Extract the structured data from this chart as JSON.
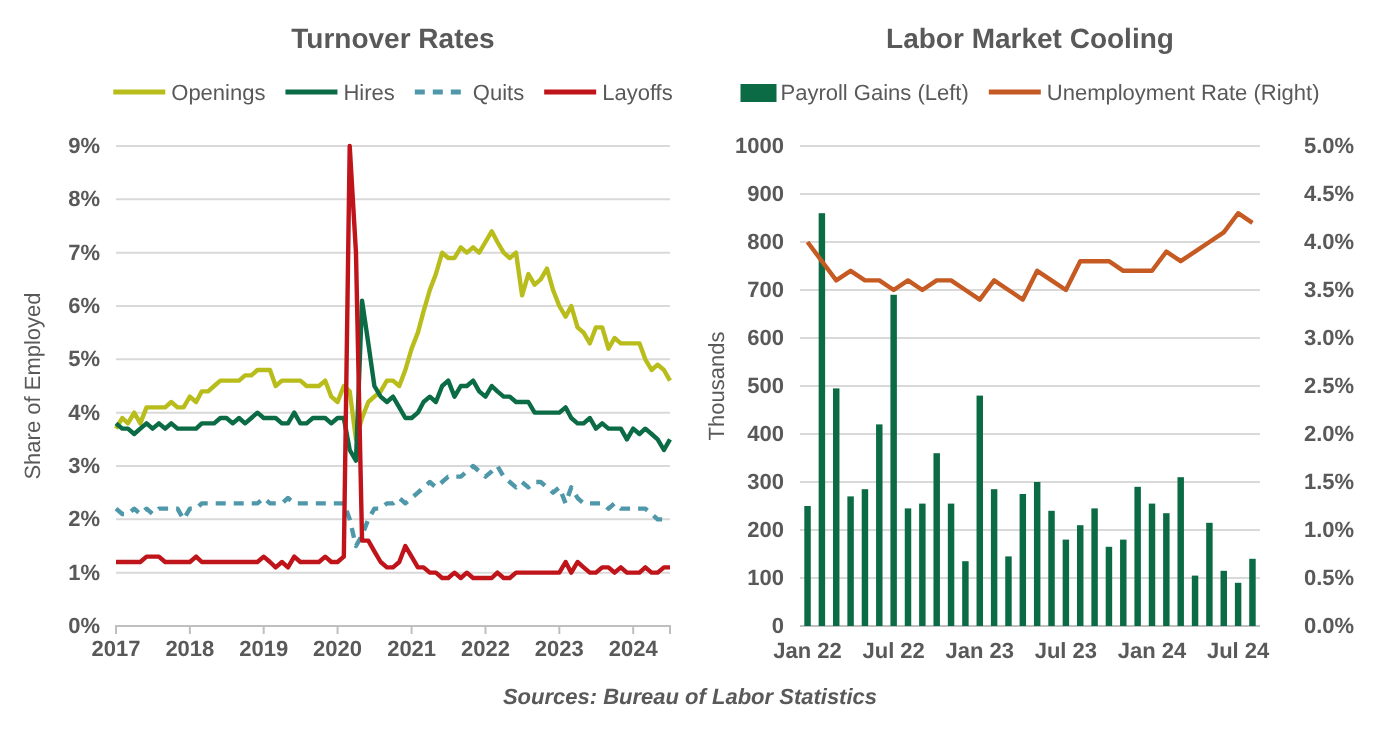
{
  "chart_data": [
    {
      "type": "line",
      "title": "Turnover Rates",
      "ylabel": "Share of Employed",
      "x": [
        "2017-01",
        "2017-02",
        "2017-03",
        "2017-04",
        "2017-05",
        "2017-06",
        "2017-07",
        "2017-08",
        "2017-09",
        "2017-10",
        "2017-11",
        "2017-12",
        "2018-01",
        "2018-02",
        "2018-03",
        "2018-04",
        "2018-05",
        "2018-06",
        "2018-07",
        "2018-08",
        "2018-09",
        "2018-10",
        "2018-11",
        "2018-12",
        "2019-01",
        "2019-02",
        "2019-03",
        "2019-04",
        "2019-05",
        "2019-06",
        "2019-07",
        "2019-08",
        "2019-09",
        "2019-10",
        "2019-11",
        "2019-12",
        "2020-01",
        "2020-02",
        "2020-03",
        "2020-04",
        "2020-05",
        "2020-06",
        "2020-07",
        "2020-08",
        "2020-09",
        "2020-10",
        "2020-11",
        "2020-12",
        "2021-01",
        "2021-02",
        "2021-03",
        "2021-04",
        "2021-05",
        "2021-06",
        "2021-07",
        "2021-08",
        "2021-09",
        "2021-10",
        "2021-11",
        "2021-12",
        "2022-01",
        "2022-02",
        "2022-03",
        "2022-04",
        "2022-05",
        "2022-06",
        "2022-07",
        "2022-08",
        "2022-09",
        "2022-10",
        "2022-11",
        "2022-12",
        "2023-01",
        "2023-02",
        "2023-03",
        "2023-04",
        "2023-05",
        "2023-06",
        "2023-07",
        "2023-08",
        "2023-09",
        "2023-10",
        "2023-11",
        "2023-12",
        "2024-01",
        "2024-02",
        "2024-03",
        "2024-04",
        "2024-05",
        "2024-06",
        "2024-07"
      ],
      "series": [
        {
          "name": "Openings",
          "color": "#b8bd1c",
          "line_style": "solid",
          "values": [
            3.7,
            3.9,
            3.8,
            4.0,
            3.8,
            4.1,
            4.1,
            4.1,
            4.1,
            4.2,
            4.1,
            4.1,
            4.3,
            4.2,
            4.4,
            4.4,
            4.5,
            4.6,
            4.6,
            4.6,
            4.6,
            4.7,
            4.7,
            4.8,
            4.8,
            4.8,
            4.5,
            4.6,
            4.6,
            4.6,
            4.6,
            4.5,
            4.5,
            4.5,
            4.6,
            4.3,
            4.2,
            4.5,
            4.4,
            3.5,
            3.9,
            4.2,
            4.3,
            4.4,
            4.6,
            4.6,
            4.5,
            4.8,
            5.2,
            5.5,
            5.9,
            6.3,
            6.6,
            7.0,
            6.9,
            6.9,
            7.1,
            7.0,
            7.1,
            7.0,
            7.2,
            7.4,
            7.2,
            7.0,
            6.9,
            7.0,
            6.2,
            6.6,
            6.4,
            6.5,
            6.7,
            6.3,
            6.0,
            5.8,
            6.0,
            5.6,
            5.5,
            5.3,
            5.6,
            5.6,
            5.2,
            5.4,
            5.3,
            5.3,
            5.3,
            5.3,
            5.0,
            4.8,
            4.9,
            4.8,
            4.6
          ]
        },
        {
          "name": "Hires",
          "color": "#0b6b45",
          "line_style": "solid",
          "values": [
            3.8,
            3.7,
            3.7,
            3.6,
            3.7,
            3.8,
            3.7,
            3.8,
            3.7,
            3.8,
            3.7,
            3.7,
            3.7,
            3.7,
            3.8,
            3.8,
            3.8,
            3.9,
            3.9,
            3.8,
            3.9,
            3.8,
            3.9,
            4.0,
            3.9,
            3.9,
            3.9,
            3.8,
            3.8,
            4.0,
            3.8,
            3.8,
            3.9,
            3.9,
            3.9,
            3.8,
            3.9,
            3.9,
            3.3,
            3.1,
            6.1,
            5.3,
            4.5,
            4.3,
            4.2,
            4.3,
            4.1,
            3.9,
            3.9,
            4.0,
            4.2,
            4.3,
            4.2,
            4.5,
            4.6,
            4.3,
            4.5,
            4.5,
            4.6,
            4.4,
            4.3,
            4.5,
            4.4,
            4.3,
            4.3,
            4.2,
            4.2,
            4.2,
            4.0,
            4.0,
            4.0,
            4.0,
            4.0,
            4.1,
            3.9,
            3.8,
            3.8,
            3.9,
            3.7,
            3.8,
            3.7,
            3.7,
            3.7,
            3.5,
            3.7,
            3.6,
            3.7,
            3.6,
            3.5,
            3.3,
            3.5
          ]
        },
        {
          "name": "Quits",
          "color": "#4f98a9",
          "line_style": "dashed",
          "values": [
            2.2,
            2.1,
            2.1,
            2.2,
            2.1,
            2.2,
            2.1,
            2.2,
            2.2,
            2.2,
            2.2,
            2.0,
            2.2,
            2.2,
            2.3,
            2.3,
            2.3,
            2.3,
            2.3,
            2.3,
            2.3,
            2.3,
            2.3,
            2.3,
            2.4,
            2.3,
            2.3,
            2.3,
            2.4,
            2.3,
            2.3,
            2.3,
            2.3,
            2.3,
            2.3,
            2.3,
            2.3,
            2.3,
            2.0,
            1.5,
            1.7,
            2.0,
            2.2,
            2.2,
            2.3,
            2.3,
            2.4,
            2.3,
            2.4,
            2.5,
            2.6,
            2.7,
            2.6,
            2.7,
            2.8,
            2.8,
            2.8,
            2.9,
            3.0,
            2.9,
            2.8,
            2.9,
            3.0,
            2.8,
            2.7,
            2.6,
            2.7,
            2.6,
            2.7,
            2.7,
            2.6,
            2.5,
            2.6,
            2.3,
            2.6,
            2.4,
            2.3,
            2.3,
            2.3,
            2.3,
            2.2,
            2.3,
            2.2,
            2.2,
            2.2,
            2.2,
            2.2,
            2.1,
            2.0,
            2.0,
            2.0
          ]
        },
        {
          "name": "Layoffs",
          "color": "#c0141b",
          "line_style": "solid",
          "values": [
            1.2,
            1.2,
            1.2,
            1.2,
            1.2,
            1.3,
            1.3,
            1.3,
            1.2,
            1.2,
            1.2,
            1.2,
            1.2,
            1.3,
            1.2,
            1.2,
            1.2,
            1.2,
            1.2,
            1.2,
            1.2,
            1.2,
            1.2,
            1.2,
            1.3,
            1.2,
            1.1,
            1.2,
            1.1,
            1.3,
            1.2,
            1.2,
            1.2,
            1.2,
            1.3,
            1.2,
            1.2,
            1.3,
            9.0,
            7.0,
            1.6,
            1.6,
            1.4,
            1.2,
            1.1,
            1.1,
            1.2,
            1.5,
            1.3,
            1.1,
            1.1,
            1.0,
            1.0,
            0.9,
            0.9,
            1.0,
            0.9,
            1.0,
            0.9,
            0.9,
            0.9,
            0.9,
            1.0,
            0.9,
            0.9,
            1.0,
            1.0,
            1.0,
            1.0,
            1.0,
            1.0,
            1.0,
            1.0,
            1.2,
            1.0,
            1.2,
            1.1,
            1.0,
            1.0,
            1.1,
            1.1,
            1.0,
            1.1,
            1.0,
            1.0,
            1.0,
            1.1,
            1.0,
            1.0,
            1.1,
            1.1
          ]
        }
      ],
      "xlim": [
        "2017-01",
        "2024-07"
      ],
      "xticks": [
        "2017",
        "2018",
        "2019",
        "2020",
        "2021",
        "2022",
        "2023",
        "2024"
      ],
      "ylim": [
        0,
        9
      ],
      "yticks": [
        {
          "value": 0,
          "label": "0%"
        },
        {
          "value": 1,
          "label": "1%"
        },
        {
          "value": 2,
          "label": "2%"
        },
        {
          "value": 3,
          "label": "3%"
        },
        {
          "value": 4,
          "label": "4%"
        },
        {
          "value": 5,
          "label": "5%"
        },
        {
          "value": 6,
          "label": "6%"
        },
        {
          "value": 7,
          "label": "7%"
        },
        {
          "value": 8,
          "label": "8%"
        },
        {
          "value": 9,
          "label": "9%"
        }
      ],
      "grid": "y",
      "legend": "top",
      "marker": "none",
      "annotations": [
        "Sources: Bureau of Labor Statistics"
      ]
    },
    {
      "type": "bar",
      "title": "Labor Market Cooling",
      "ylabel": "Thousands",
      "categories": [
        "Jan 22",
        null,
        null,
        null,
        null,
        null,
        "Jul 22",
        null,
        null,
        null,
        null,
        null,
        "Jan 23",
        null,
        null,
        null,
        null,
        null,
        "Jul 23",
        null,
        null,
        null,
        null,
        null,
        "Jan 24",
        null,
        null,
        null,
        null,
        null,
        "Jul 24",
        null
      ],
      "series": [
        {
          "type": "bar",
          "name": "Payroll Gains (Left)",
          "color": "#0b6b45",
          "values": [
            250,
            860,
            495,
            270,
            285,
            420,
            690,
            245,
            255,
            360,
            255,
            135,
            480,
            285,
            145,
            275,
            300,
            240,
            180,
            210,
            245,
            165,
            180,
            290,
            255,
            235,
            310,
            105,
            215,
            115,
            90,
            140
          ]
        },
        {
          "type": "line",
          "axis": "y2",
          "name": "Unemployment Rate (Right)",
          "color": "#c55a22",
          "values": [
            4.0,
            3.8,
            3.6,
            3.7,
            3.6,
            3.6,
            3.5,
            3.6,
            3.5,
            3.6,
            3.6,
            3.5,
            3.4,
            3.6,
            3.5,
            3.4,
            3.7,
            3.6,
            3.5,
            3.8,
            3.8,
            3.8,
            3.7,
            3.7,
            3.7,
            3.9,
            3.8,
            3.9,
            4.0,
            4.1,
            4.3,
            4.2
          ]
        }
      ],
      "ylim": [
        0,
        1000
      ],
      "yticks": [
        0,
        100,
        200,
        300,
        400,
        500,
        600,
        700,
        800,
        900,
        1000
      ],
      "y2lim": [
        0,
        5
      ],
      "y2ticks": [
        {
          "value": 0,
          "label": "0.0%"
        },
        {
          "value": 0.5,
          "label": "0.5%"
        },
        {
          "value": 1,
          "label": "1.0%"
        },
        {
          "value": 1.5,
          "label": "1.5%"
        },
        {
          "value": 2,
          "label": "2.0%"
        },
        {
          "value": 2.5,
          "label": "2.5%"
        },
        {
          "value": 3,
          "label": "3.0%"
        },
        {
          "value": 3.5,
          "label": "3.5%"
        },
        {
          "value": 4,
          "label": "4.0%"
        },
        {
          "value": 4.5,
          "label": "4.5%"
        },
        {
          "value": 5,
          "label": "5.0%"
        }
      ],
      "grid": "y",
      "legend": "top",
      "marker": "none"
    }
  ]
}
